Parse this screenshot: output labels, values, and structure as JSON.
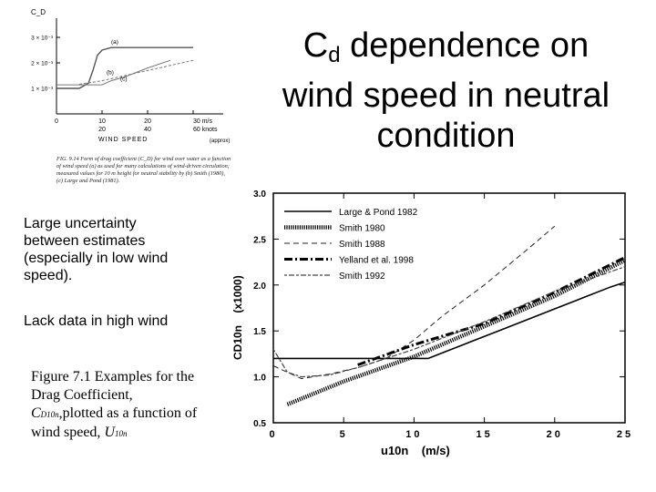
{
  "slide": {
    "title_main": "C",
    "title_sub": "d",
    "title_rest": " dependence on wind speed in neutral condition",
    "bullet1": "Large uncertainty between estimates (especially in low wind speed).",
    "bullet2": "Lack data in high wind",
    "caption": {
      "fig_label": "Figure 7.1",
      "text1": " Examples for the Drag Coefficient, ",
      "sym1": "C",
      "sym1_sub": "D10n",
      "text2": ",plotted as a function of wind speed, ",
      "sym2": "U",
      "sym2_sub": "10n"
    }
  },
  "chart_data": [
    {
      "type": "line",
      "ylabel": "C_D",
      "xlabel": "WIND SPEED",
      "x_ticks_top": [
        "0",
        "10",
        "20",
        "30 m/s"
      ],
      "x_ticks_bottom": [
        "20",
        "40",
        "60 knots"
      ],
      "x_ticks_note": "(approx)",
      "y_ticks": [
        "3 × 10⁻³",
        "2 × 10⁻³",
        "1 × 10⁻³"
      ],
      "curve_labels": [
        "(a)",
        "(b)",
        "(c)"
      ],
      "caption": "FIG. 9.14 Form of drag coefficient (C_D) for wind over water as a function of wind speed (a) as used for many calculations of wind-driven circulation; measured values for 10 m height for neutral stability by (b) Smith (1980), (c) Large and Pond (1981).",
      "series": [
        {
          "name": "(a)",
          "x": [
            0,
            5,
            7,
            8,
            9,
            10,
            12,
            15,
            20,
            30
          ],
          "y": [
            1.0,
            1.0,
            1.2,
            1.7,
            2.3,
            2.5,
            2.6,
            2.6,
            2.6,
            2.6
          ]
        },
        {
          "name": "(b)",
          "x": [
            5,
            10,
            15,
            20,
            25,
            30
          ],
          "y": [
            1.16,
            1.3,
            1.5,
            1.7,
            1.9,
            2.1
          ]
        },
        {
          "name": "(c)",
          "x": [
            0,
            5,
            10,
            12,
            15,
            20,
            25
          ],
          "y": [
            1.14,
            1.14,
            1.14,
            1.3,
            1.45,
            1.8,
            2.1
          ]
        }
      ]
    },
    {
      "type": "line",
      "xlabel": "u10n    (m/s)",
      "ylabel": "CD10n    (x1000)",
      "xlim": [
        0,
        25
      ],
      "ylim": [
        0.5,
        3.0
      ],
      "x_ticks": [
        "0",
        "5",
        "10",
        "15",
        "20",
        "25"
      ],
      "y_ticks": [
        "0.5",
        "1.0",
        "1.5",
        "2.0",
        "2.5",
        "3.0"
      ],
      "legend_position": "top-right",
      "series": [
        {
          "name": "Large & Pond 1982",
          "x": [
            0,
            4,
            6,
            8,
            10,
            11,
            12,
            14,
            16,
            18,
            20,
            22,
            24,
            25
          ],
          "y": [
            1.2,
            1.2,
            1.2,
            1.2,
            1.2,
            1.2,
            1.26,
            1.38,
            1.5,
            1.62,
            1.74,
            1.86,
            1.98,
            2.03
          ]
        },
        {
          "name": "Smith 1980",
          "x": [
            1,
            5,
            10,
            15,
            20,
            25
          ],
          "y": [
            0.7,
            0.95,
            1.22,
            1.55,
            1.88,
            2.27
          ]
        },
        {
          "name": "Smith 1988",
          "x": [
            0,
            2,
            4,
            6,
            8,
            10,
            12,
            15,
            18,
            20
          ],
          "y": [
            1.12,
            0.98,
            1.03,
            1.1,
            1.2,
            1.4,
            1.66,
            2.0,
            2.38,
            2.64
          ]
        },
        {
          "name": "Yelland et al. 1998",
          "x": [
            6,
            10,
            15,
            20,
            25
          ],
          "y": [
            1.13,
            1.35,
            1.58,
            1.92,
            2.3
          ]
        },
        {
          "name": "Smith 1992",
          "x": [
            0,
            1,
            2,
            4,
            6,
            8,
            10,
            15,
            20,
            25
          ],
          "y": [
            1.3,
            1.05,
            1.0,
            1.02,
            1.1,
            1.2,
            1.3,
            1.6,
            1.93,
            2.2
          ]
        }
      ]
    }
  ]
}
